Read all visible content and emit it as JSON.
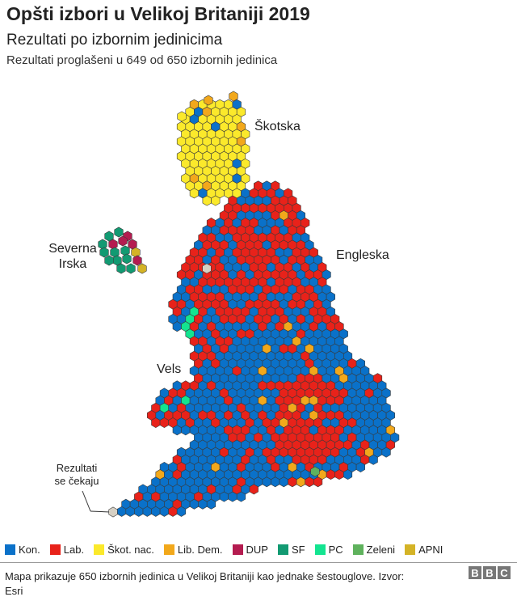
{
  "header": {
    "title": "Opšti izbori u Velikoj Britaniji 2019",
    "subtitle": "Rezultati po izbornim jedinicima",
    "note": "Rezultati proglašeni u 649 od 650 izbornih jedinica"
  },
  "map_labels": {
    "scotland": "Škotska",
    "england": "Engleska",
    "ni_line1": "Severna",
    "ni_line2": "Irska",
    "wales": "Vels",
    "pending_line1": "Rezultati",
    "pending_line2": "se čekaju"
  },
  "legend": [
    {
      "label": "Kon.",
      "color": "#0a71c9"
    },
    {
      "label": "Lab.",
      "color": "#e8221a"
    },
    {
      "label": "Škot. nac.",
      "color": "#fbe92b"
    },
    {
      "label": "Lib. Dem.",
      "color": "#f2a81b"
    },
    {
      "label": "DUP",
      "color": "#b41c50"
    },
    {
      "label": "SF",
      "color": "#129a72"
    },
    {
      "label": "PC",
      "color": "#13e490"
    },
    {
      "label": "Zeleni",
      "color": "#5fb25d"
    },
    {
      "label": "APNI",
      "color": "#d4b326"
    }
  ],
  "pending_color": "#d6d0c4",
  "map_stats": {
    "declared": 649,
    "total": 650
  },
  "footer": {
    "text": "Mapa prikazuje 650 izbornih jedinica u Velikoj Britaniji kao jednake šestouglove. Izvor: Esri",
    "logo": "BBC"
  }
}
